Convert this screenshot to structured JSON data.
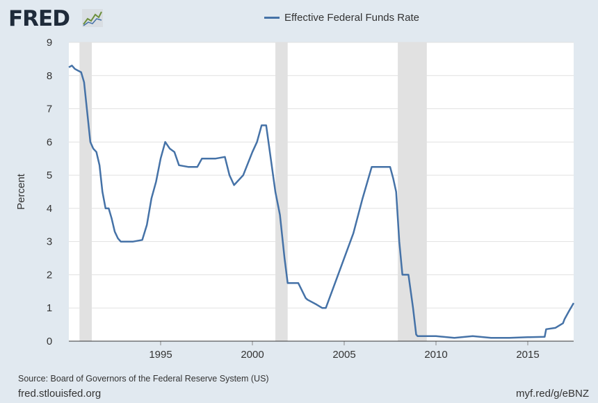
{
  "brand": {
    "logo_text": "FRED",
    "logo_icon": "fred-chart-icon"
  },
  "colors": {
    "series": "#4572a7",
    "recession": "#e1e1e1",
    "grid": "#e1e1e1",
    "background": "#e1e9f0",
    "plot_bg": "#ffffff"
  },
  "chart_data": {
    "type": "line",
    "title": "",
    "xlabel": "",
    "ylabel": "Percent",
    "xlim": [
      1990.0,
      2017.5
    ],
    "ylim": [
      0,
      9
    ],
    "yticks": [
      0,
      1,
      2,
      3,
      4,
      5,
      6,
      7,
      8,
      9
    ],
    "xticks": [
      1995,
      2000,
      2005,
      2010,
      2015
    ],
    "grid": true,
    "legend_position": "top-center",
    "recessions": [
      [
        1990.58,
        1991.25
      ],
      [
        2001.25,
        2001.92
      ],
      [
        2007.92,
        2009.5
      ]
    ],
    "series": [
      {
        "name": "Effective Federal Funds Rate",
        "x": [
          1990.0,
          1990.17,
          1990.33,
          1990.5,
          1990.67,
          1990.83,
          1991.0,
          1991.17,
          1991.33,
          1991.5,
          1991.67,
          1991.83,
          1992.0,
          1992.17,
          1992.33,
          1992.5,
          1992.67,
          1992.83,
          1993.0,
          1993.5,
          1994.0,
          1994.25,
          1994.5,
          1994.75,
          1995.0,
          1995.25,
          1995.5,
          1995.75,
          1996.0,
          1996.5,
          1997.0,
          1997.25,
          1998.0,
          1998.5,
          1998.75,
          1999.0,
          1999.5,
          2000.0,
          2000.25,
          2000.5,
          2000.75,
          2001.0,
          2001.25,
          2001.5,
          2001.75,
          2001.92,
          2002.0,
          2002.5,
          2002.9,
          2003.0,
          2003.5,
          2003.8,
          2004.0,
          2004.5,
          2005.0,
          2005.5,
          2006.0,
          2006.5,
          2007.0,
          2007.5,
          2007.67,
          2007.83,
          2008.0,
          2008.17,
          2008.33,
          2008.5,
          2008.75,
          2008.92,
          2009.0,
          2009.5,
          2010.0,
          2011.0,
          2012.0,
          2013.0,
          2014.0,
          2015.0,
          2015.92,
          2016.0,
          2016.5,
          2016.92,
          2017.0,
          2017.25,
          2017.5
        ],
        "y": [
          8.25,
          8.3,
          8.2,
          8.15,
          8.1,
          7.8,
          6.9,
          6.0,
          5.8,
          5.7,
          5.3,
          4.5,
          4.0,
          4.0,
          3.7,
          3.3,
          3.1,
          3.0,
          3.0,
          3.0,
          3.05,
          3.5,
          4.3,
          4.8,
          5.5,
          6.0,
          5.8,
          5.7,
          5.3,
          5.25,
          5.25,
          5.5,
          5.5,
          5.55,
          5.0,
          4.7,
          5.0,
          5.7,
          6.0,
          6.5,
          6.5,
          5.5,
          4.5,
          3.8,
          2.5,
          1.75,
          1.75,
          1.75,
          1.3,
          1.25,
          1.1,
          1.0,
          1.0,
          1.75,
          2.5,
          3.25,
          4.3,
          5.25,
          5.25,
          5.25,
          4.9,
          4.5,
          3.0,
          2.0,
          2.0,
          2.0,
          1.0,
          0.2,
          0.15,
          0.15,
          0.15,
          0.1,
          0.15,
          0.1,
          0.1,
          0.12,
          0.13,
          0.36,
          0.4,
          0.54,
          0.66,
          0.91,
          1.15
        ]
      }
    ]
  },
  "footer": {
    "source": "Source: Board of Governors of the Federal Reserve System (US)",
    "site": "fred.stlouisfed.org",
    "short_url": "myf.red/g/eBNZ"
  }
}
